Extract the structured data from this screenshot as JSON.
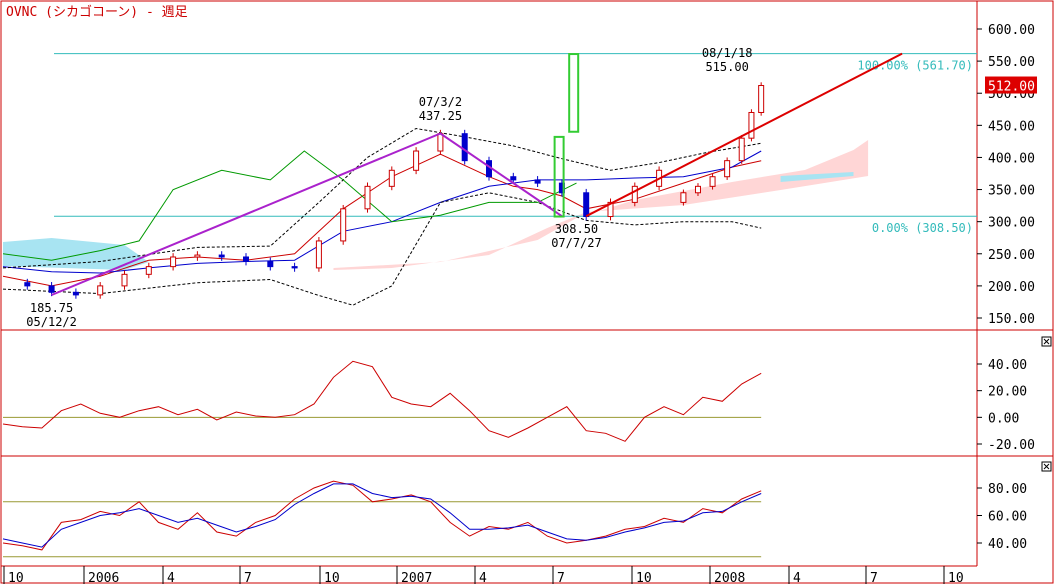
{
  "title": "OVNC (シカゴコーン) - 週足",
  "colors": {
    "frame": "#cc0000",
    "price_up": "#cc0000",
    "price_down": "#0000cc",
    "ma_fast": "#cc0000",
    "ma_slow": "#0000cc",
    "bollinger": "#000000",
    "span_line": "#009900",
    "cloud_pink": "#ffd6d6",
    "cloud_cyan": "#a8e4f2",
    "trend_up": "#dd0000",
    "trend_purple": "#aa22cc",
    "fib_line": "#33bbbb",
    "rsi_line": "#cc0000",
    "zero_line": "#999933",
    "stoch_k": "#cc0000",
    "stoch_d": "#0000cc",
    "highlight_box": "#33cc33",
    "current_price_bg": "#dd0000",
    "current_price_fg": "#ffffff"
  },
  "chart_data": [
    {
      "type": "candlestick",
      "panel": "price",
      "title": "OVNC (シカゴコーン) - 週足",
      "x_tick_labels": [
        "10",
        "2006",
        "4",
        "7",
        "10",
        "2007",
        "4",
        "7",
        "10",
        "2008",
        "4",
        "7",
        "10"
      ],
      "y_tick_labels": [
        "600.00",
        "550.00",
        "500.00",
        "450.00",
        "400.00",
        "350.00",
        "300.00",
        "250.00",
        "200.00",
        "150.00"
      ],
      "ylim": [
        130,
        620
      ],
      "series": [
        {
          "kind": "close",
          "x": [
            0,
            5,
            10,
            15,
            20,
            25,
            30,
            35,
            40,
            45,
            50,
            55,
            60,
            65,
            70,
            75,
            80,
            85,
            90,
            95,
            100,
            105,
            110,
            115,
            120,
            125,
            130,
            135
          ],
          "values": [
            205,
            200,
            190,
            186,
            200,
            218,
            230,
            245,
            248,
            245,
            238,
            230,
            228,
            270,
            320,
            355,
            380,
            410,
            437,
            395,
            370,
            365,
            360,
            345,
            308,
            330,
            355,
            380
          ]
        },
        {
          "kind": "ma_fast",
          "x": [
            0,
            10,
            20,
            30,
            40,
            50,
            60,
            70,
            80,
            90,
            100,
            105,
            110,
            115,
            120,
            130,
            140,
            150,
            156
          ],
          "values": [
            215,
            200,
            215,
            240,
            245,
            240,
            250,
            320,
            370,
            405,
            370,
            355,
            350,
            340,
            320,
            335,
            360,
            385,
            395
          ]
        },
        {
          "kind": "ma_slow",
          "x": [
            0,
            10,
            20,
            30,
            40,
            50,
            60,
            70,
            80,
            90,
            100,
            110,
            120,
            130,
            140,
            150,
            156
          ],
          "values": [
            230,
            222,
            220,
            228,
            235,
            238,
            240,
            285,
            300,
            330,
            355,
            365,
            365,
            368,
            370,
            385,
            410
          ]
        },
        {
          "kind": "bollinger_upper",
          "x": [
            0,
            20,
            40,
            55,
            65,
            75,
            85,
            95,
            105,
            115,
            125,
            135,
            145,
            156
          ],
          "values": [
            228,
            238,
            260,
            262,
            330,
            400,
            445,
            432,
            418,
            398,
            380,
            392,
            408,
            422
          ]
        },
        {
          "kind": "bollinger_lower",
          "x": [
            0,
            20,
            40,
            55,
            65,
            72,
            80,
            90,
            100,
            110,
            120,
            130,
            140,
            150,
            156
          ],
          "values": [
            195,
            188,
            205,
            210,
            185,
            170,
            200,
            330,
            345,
            330,
            302,
            295,
            300,
            300,
            290
          ]
        },
        {
          "kind": "span_b",
          "x": [
            0,
            10,
            20,
            28,
            35,
            45,
            55,
            62,
            70,
            80,
            90,
            100,
            110,
            118
          ],
          "values": [
            250,
            240,
            255,
            270,
            350,
            380,
            365,
            410,
            365,
            300,
            310,
            330,
            330,
            360
          ]
        }
      ],
      "annotations": [
        {
          "label": "07/3/2",
          "value": "437.25"
        },
        {
          "label": "05/12/2",
          "value": "185.75"
        },
        {
          "label": "07/7/27",
          "value": "308.50"
        },
        {
          "label": "08/1/18",
          "value": "515.00"
        }
      ],
      "fibonacci": [
        {
          "label": "100.00% (561.70)",
          "value": 561.7
        },
        {
          "label": "0.00% (308.50)",
          "value": 308.5
        }
      ],
      "current_price": "512.00"
    },
    {
      "type": "line",
      "panel": "oscillator",
      "y_tick_labels": [
        "40.00",
        "20.00",
        "0.00",
        "-20.00"
      ],
      "ylim": [
        -30,
        55
      ],
      "reference_line": 0,
      "x": [
        0,
        4,
        8,
        12,
        16,
        20,
        24,
        28,
        32,
        36,
        40,
        44,
        48,
        52,
        56,
        60,
        64,
        68,
        72,
        76,
        80,
        84,
        88,
        92,
        96,
        100,
        104,
        108,
        112,
        116,
        120,
        124,
        128,
        132,
        136,
        140,
        144,
        148,
        152,
        156
      ],
      "values": [
        -5,
        -7,
        -8,
        5,
        10,
        3,
        0,
        5,
        8,
        2,
        6,
        -2,
        4,
        1,
        0,
        2,
        10,
        30,
        42,
        38,
        15,
        10,
        8,
        18,
        5,
        -10,
        -15,
        -8,
        0,
        8,
        -10,
        -12,
        -18,
        0,
        8,
        2,
        15,
        12,
        25,
        33
      ]
    },
    {
      "type": "line",
      "panel": "stochastic",
      "y_tick_labels": [
        "80.00",
        "60.00",
        "40.00"
      ],
      "ylim": [
        28,
        98
      ],
      "reference_lines": [
        70,
        30
      ],
      "x": [
        0,
        4,
        8,
        12,
        16,
        20,
        24,
        28,
        32,
        36,
        40,
        44,
        48,
        52,
        56,
        60,
        64,
        68,
        72,
        76,
        80,
        84,
        88,
        92,
        96,
        100,
        104,
        108,
        112,
        116,
        120,
        124,
        128,
        132,
        136,
        140,
        144,
        148,
        152,
        156
      ],
      "series": [
        {
          "name": "%K",
          "values": [
            40,
            38,
            35,
            55,
            57,
            63,
            60,
            70,
            55,
            50,
            62,
            48,
            45,
            55,
            60,
            72,
            80,
            85,
            82,
            70,
            72,
            75,
            70,
            55,
            45,
            52,
            50,
            55,
            45,
            40,
            42,
            45,
            50,
            52,
            58,
            55,
            65,
            62,
            72,
            78
          ]
        },
        {
          "name": "%D",
          "values": [
            43,
            40,
            37,
            50,
            55,
            60,
            62,
            65,
            60,
            55,
            58,
            53,
            48,
            52,
            57,
            68,
            76,
            83,
            83,
            76,
            73,
            74,
            72,
            62,
            50,
            50,
            51,
            53,
            48,
            43,
            42,
            44,
            48,
            51,
            55,
            56,
            62,
            63,
            70,
            76
          ]
        }
      ]
    }
  ]
}
